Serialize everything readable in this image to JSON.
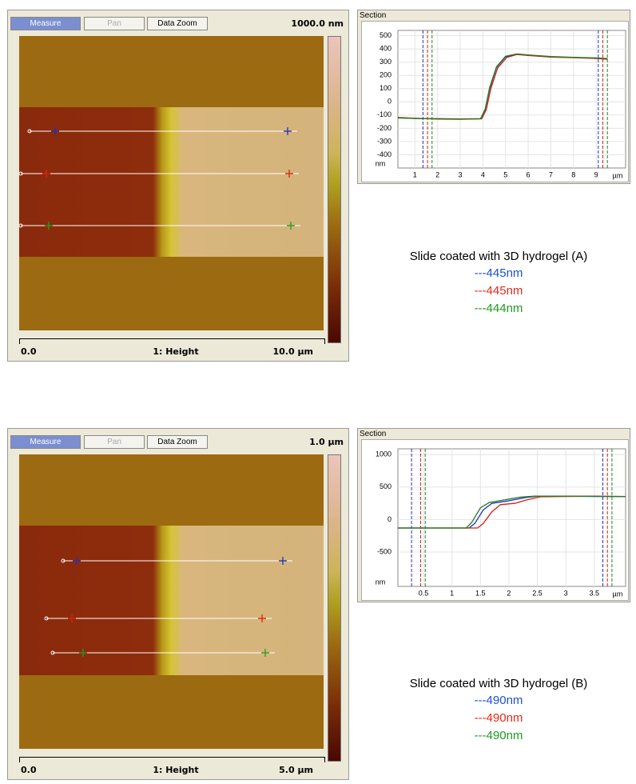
{
  "panels": [
    {
      "toolbar": {
        "buttons": [
          "Measure",
          "Pan",
          "Data Zoom"
        ],
        "scale_label": "1000.0 nm"
      },
      "image_footer": {
        "left": "0.0",
        "center": "1: Height",
        "right": "10.0 µm"
      },
      "section": {
        "title": "Section",
        "y_unit": "nm",
        "x_unit": "µm",
        "xlim": [
          0.25,
          10.3
        ],
        "ylim": [
          -500,
          540
        ],
        "yticks": [
          500,
          400,
          300,
          200,
          100,
          0,
          -100,
          -200,
          -300,
          -400
        ],
        "xticks": [
          1,
          2,
          3,
          4,
          5,
          6,
          7,
          8,
          9
        ],
        "profiles": [
          {
            "color": "#2030c0",
            "x": [
              0.25,
              1,
              2,
              3,
              3.9,
              4.1,
              4.3,
              4.6,
              5.0,
              5.5,
              6,
              7,
              8,
              9,
              9.5
            ],
            "y": [
              -120,
              -125,
              -128,
              -130,
              -128,
              -60,
              100,
              260,
              340,
              360,
              352,
              340,
              335,
              330,
              325
            ]
          },
          {
            "color": "#d02010",
            "x": [
              0.25,
              1,
              2,
              3,
              3.95,
              4.15,
              4.35,
              4.65,
              5.05,
              5.5,
              6,
              7,
              8,
              9,
              9.5
            ],
            "y": [
              -118,
              -124,
              -130,
              -132,
              -128,
              -60,
              100,
              255,
              335,
              358,
              350,
              338,
              334,
              328,
              322
            ]
          },
          {
            "color": "#208020",
            "x": [
              0.25,
              1,
              2,
              3,
              3.9,
              4.1,
              4.3,
              4.6,
              5.0,
              5.5,
              6,
              7,
              8,
              9,
              9.5
            ],
            "y": [
              -122,
              -126,
              -127,
              -129,
              -127,
              -55,
              110,
              265,
              345,
              362,
              355,
              342,
              336,
              332,
              327
            ]
          }
        ]
      },
      "caption": "Slide coated with 3D hydrogel (A)",
      "heights": [
        {
          "label": "---445nm",
          "color": "#1f4fd6"
        },
        {
          "label": "---445nm",
          "color": "#e8281a"
        },
        {
          "label": "---444nm",
          "color": "#1f9a1f"
        }
      ]
    },
    {
      "toolbar": {
        "buttons": [
          "Measure",
          "Pan",
          "Data Zoom"
        ],
        "scale_label": "1.0 µm"
      },
      "image_footer": {
        "left": "0.0",
        "center": "1: Height",
        "right": "5.0 µm"
      },
      "section": {
        "title": "Section",
        "y_unit": "nm",
        "x_unit": "µm",
        "xlim": [
          0.05,
          4.05
        ],
        "ylim": [
          -1030,
          1090
        ],
        "yticks": [
          1000,
          500,
          0,
          -500
        ],
        "xticks": [
          0.5,
          1,
          1.5,
          2,
          2.5,
          3,
          3.5
        ],
        "profiles": [
          {
            "color": "#2030c0",
            "x": [
              0.05,
              1.3,
              1.4,
              1.55,
              1.7,
              2.0,
              2.3,
              2.5,
              3,
              3.5,
              4.05
            ],
            "y": [
              -130,
              -130,
              -60,
              150,
              250,
              290,
              340,
              360,
              360,
              355,
              355
            ]
          },
          {
            "color": "#d02010",
            "x": [
              0.05,
              1.45,
              1.55,
              1.7,
              1.85,
              2.1,
              2.3,
              2.55,
              3,
              3.5,
              4.05
            ],
            "y": [
              -130,
              -130,
              -60,
              120,
              230,
              250,
              300,
              350,
              355,
              360,
              355
            ]
          },
          {
            "color": "#208020",
            "x": [
              0.05,
              1.25,
              1.35,
              1.5,
              1.65,
              1.9,
              2.2,
              2.45,
              3,
              3.5,
              4.05
            ],
            "y": [
              -130,
              -130,
              -40,
              180,
              260,
              300,
              345,
              360,
              360,
              358,
              355
            ]
          }
        ]
      },
      "caption": "Slide coated with 3D hydrogel (B)",
      "heights": [
        {
          "label": "---490nm",
          "color": "#1f4fd6"
        },
        {
          "label": "---490nm",
          "color": "#e8281a"
        },
        {
          "label": "---490nm",
          "color": "#1f9a1f"
        }
      ]
    }
  ]
}
